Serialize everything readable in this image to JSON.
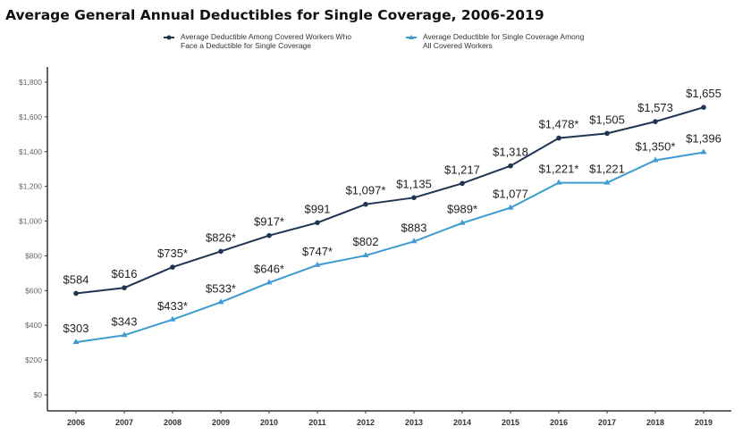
{
  "chart_data": {
    "type": "line",
    "title": "Average General Annual Deductibles for Single Coverage, 2006-2019",
    "xlabel": "",
    "ylabel": "",
    "x": [
      "2006",
      "2007",
      "2008",
      "2009",
      "2010",
      "2011",
      "2012",
      "2013",
      "2014",
      "2015",
      "2016",
      "2017",
      "2018",
      "2019"
    ],
    "ylim": [
      0,
      1800
    ],
    "yticks": [
      0,
      200,
      400,
      600,
      800,
      1000,
      1200,
      1400,
      1600,
      1800
    ],
    "ytick_labels": [
      "$0",
      "$200",
      "$400",
      "$600",
      "$800",
      "$1,000",
      "$1,200",
      "$1,400",
      "$1,600",
      "$1,800"
    ],
    "grid": false,
    "legend_placement": "top",
    "series": [
      {
        "name": "Average Deductible Among Covered Workers Who Face a Deductible for Single Coverage",
        "legend_lines": [
          "Average Deductible Among Covered Workers Who",
          "Face a Deductible for Single Coverage"
        ],
        "color": "#1f3552",
        "marker": "circle",
        "values": [
          584,
          616,
          735,
          826,
          917,
          991,
          1097,
          1135,
          1217,
          1318,
          1478,
          1505,
          1573,
          1655
        ],
        "labels": [
          "$584",
          "$616",
          "$735*",
          "$826*",
          "$917*",
          "$991",
          "$1,097*",
          "$1,135",
          "$1,217",
          "$1,318",
          "$1,478*",
          "$1,505",
          "$1,573",
          "$1,655"
        ]
      },
      {
        "name": "Average Deductible for Single Coverage Among All Covered Workers",
        "legend_lines": [
          "Average Deductible for Single Coverage Among",
          "All Covered Workers"
        ],
        "color": "#3d9bd1",
        "marker": "triangle",
        "values": [
          303,
          343,
          433,
          533,
          646,
          747,
          802,
          883,
          989,
          1077,
          1221,
          1221,
          1350,
          1396
        ],
        "labels": [
          "$303",
          "$343",
          "$433*",
          "$533*",
          "$646*",
          "$747*",
          "$802",
          "$883",
          "$989*",
          "$1,077",
          "$1,221*",
          "$1,221",
          "$1,350*",
          "$1,396"
        ]
      }
    ]
  }
}
